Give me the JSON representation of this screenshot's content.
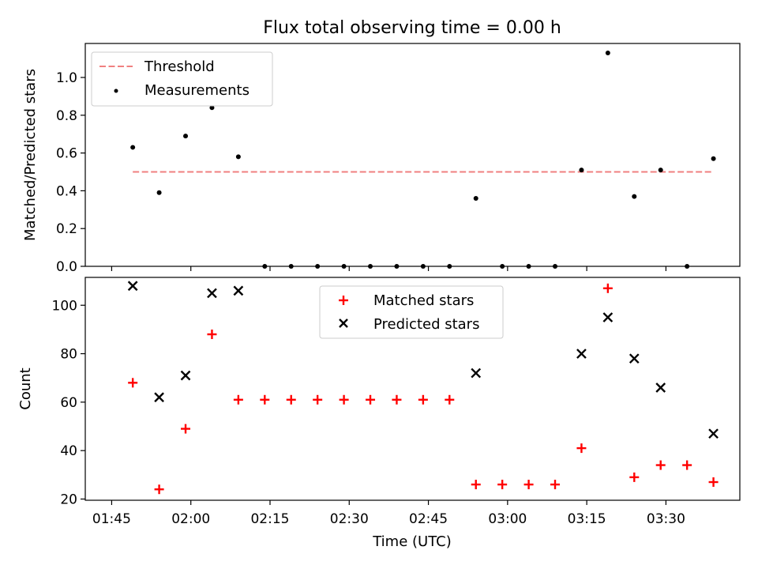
{
  "figure_title": "Flux total observing time = 0.00 h",
  "xlabel": "Time (UTC)",
  "x_ticks": [
    "01:45",
    "02:00",
    "02:15",
    "02:30",
    "02:45",
    "03:00",
    "03:15",
    "03:30"
  ],
  "chart_data": [
    {
      "type": "scatter",
      "title": "Flux total observing time = 0.00 h",
      "xlabel": "",
      "ylabel": "Matched/Predicted stars",
      "ylim": [
        0,
        1.18
      ],
      "y_ticks": [
        "0.0",
        "0.2",
        "0.4",
        "0.6",
        "0.8",
        "1.0"
      ],
      "legend_placement": "top-left",
      "x": [
        "01:49",
        "01:54",
        "01:59",
        "02:04",
        "02:09",
        "02:14",
        "02:19",
        "02:24",
        "02:29",
        "02:34",
        "02:39",
        "02:44",
        "02:49",
        "02:54",
        "02:59",
        "03:04",
        "03:09",
        "03:14",
        "03:19",
        "03:24",
        "03:29",
        "03:34",
        "03:39"
      ],
      "series": [
        {
          "name": "Threshold",
          "kind": "dashed-line",
          "color": "#f08080",
          "x": [
            "01:49",
            "03:39"
          ],
          "values": [
            0.5,
            0.5
          ]
        },
        {
          "name": "Measurements",
          "kind": "dot",
          "color": "#000000",
          "values": [
            0.63,
            0.39,
            0.69,
            0.84,
            0.58,
            0.0,
            0.0,
            0.0,
            0.0,
            0.0,
            0.0,
            0.0,
            0.0,
            0.36,
            0.0,
            0.0,
            0.0,
            0.51,
            1.13,
            0.37,
            0.51,
            0.0,
            0.57
          ]
        }
      ]
    },
    {
      "type": "scatter",
      "title": "",
      "xlabel": "Time (UTC)",
      "ylabel": "Count",
      "ylim": [
        19.5,
        111.5
      ],
      "y_ticks": [
        "20",
        "40",
        "60",
        "80",
        "100"
      ],
      "legend_placement": "top-center",
      "x": [
        "01:49",
        "01:54",
        "01:59",
        "02:04",
        "02:09",
        "02:14",
        "02:19",
        "02:24",
        "02:29",
        "02:34",
        "02:39",
        "02:44",
        "02:49",
        "02:54",
        "02:59",
        "03:04",
        "03:09",
        "03:14",
        "03:19",
        "03:24",
        "03:29",
        "03:34",
        "03:39"
      ],
      "series": [
        {
          "name": "Matched stars",
          "kind": "plus",
          "color": "#ff0000",
          "values": [
            68,
            24,
            49,
            88,
            61,
            61,
            61,
            61,
            61,
            61,
            61,
            61,
            61,
            26,
            26,
            26,
            26,
            41,
            107,
            29,
            34,
            34,
            27
          ]
        },
        {
          "name": "Predicted stars",
          "kind": "x",
          "color": "#000000",
          "values": [
            108,
            62,
            71,
            105,
            106,
            null,
            null,
            null,
            null,
            null,
            null,
            null,
            null,
            72,
            null,
            null,
            null,
            80,
            95,
            78,
            66,
            null,
            47
          ]
        }
      ]
    }
  ]
}
